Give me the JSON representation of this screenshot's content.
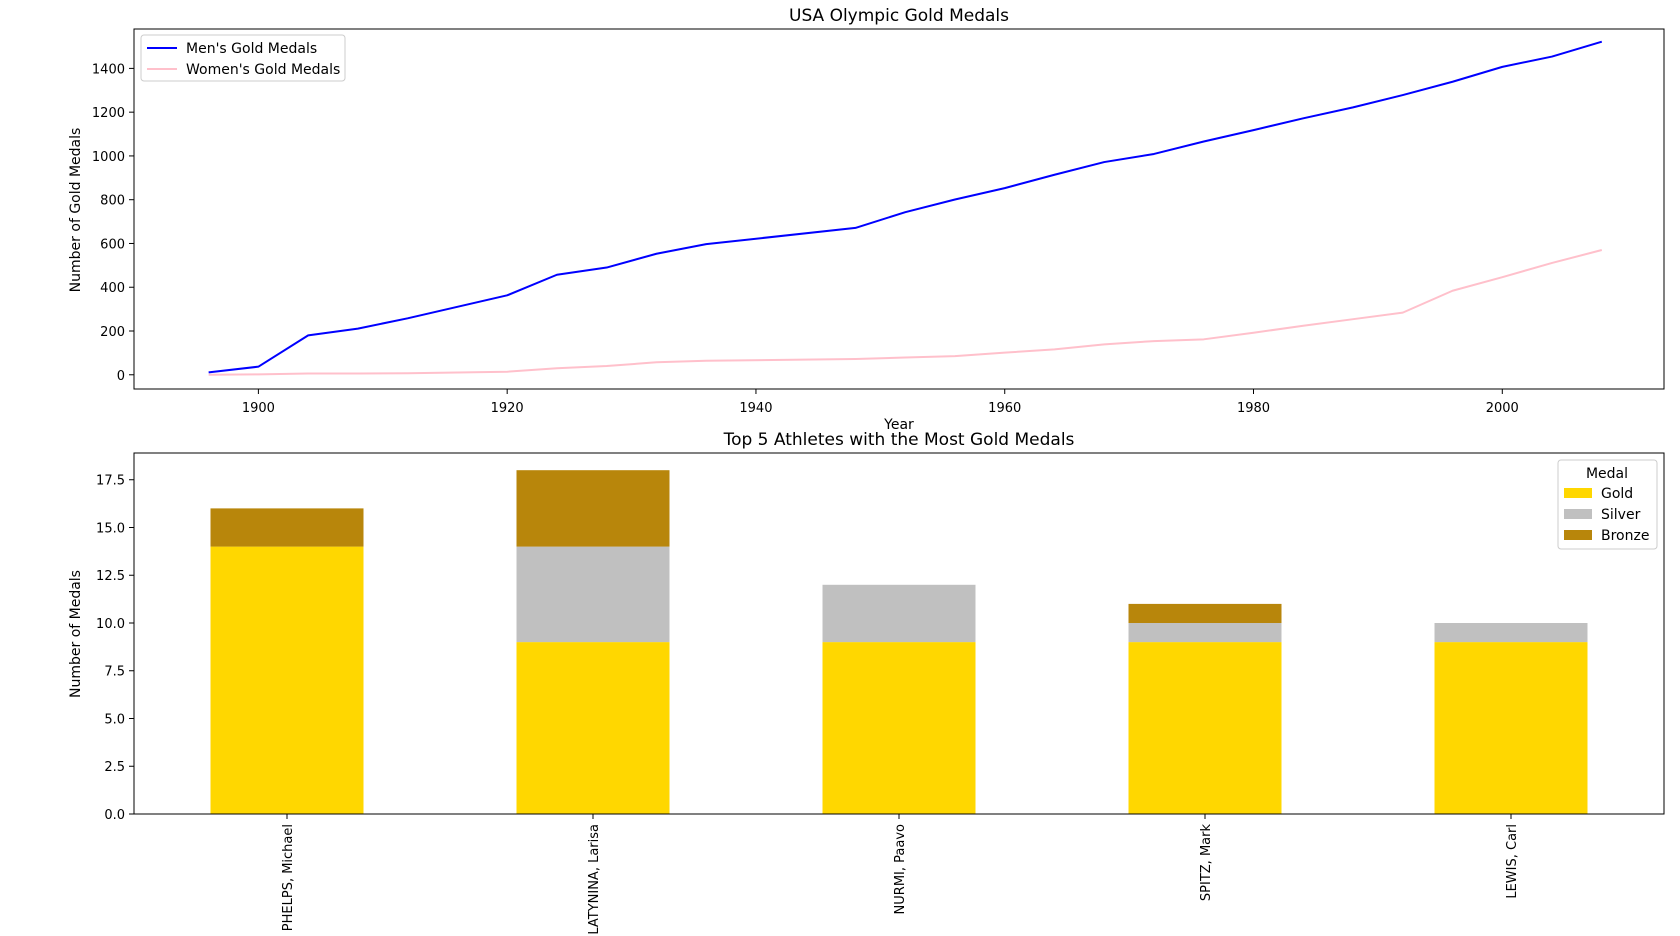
{
  "chart_data": [
    {
      "type": "line",
      "title": "USA Olympic Gold Medals",
      "xlabel": "Year",
      "ylabel": "Number of Gold Medals",
      "xlim": [
        1890,
        2013
      ],
      "ylim": [
        -65,
        1580
      ],
      "xticks": [
        1900,
        1920,
        1940,
        1960,
        1980,
        2000
      ],
      "yticks": [
        0,
        200,
        400,
        600,
        800,
        1000,
        1200,
        1400
      ],
      "legend_position": "upper-left",
      "x": [
        1896,
        1900,
        1904,
        1908,
        1912,
        1920,
        1924,
        1928,
        1932,
        1936,
        1948,
        1952,
        1956,
        1960,
        1964,
        1968,
        1972,
        1976,
        1980,
        1984,
        1988,
        1992,
        1996,
        2000,
        2004,
        2008
      ],
      "series": [
        {
          "name": "Men's Gold Medals",
          "color": "#0000ff",
          "values": [
            11,
            37,
            180,
            211,
            258,
            363,
            457,
            490,
            553,
            597,
            671,
            743,
            801,
            853,
            914,
            972,
            1009,
            1066,
            1118,
            1172,
            1222,
            1278,
            1339,
            1407,
            1454,
            1522
          ]
        },
        {
          "name": "Women's Gold Medals",
          "color": "#ffc0cb",
          "values": [
            0,
            2,
            6,
            6,
            7,
            14,
            30,
            40,
            57,
            64,
            72,
            79,
            85,
            101,
            116,
            139,
            154,
            162,
            192,
            224,
            254,
            284,
            384,
            446,
            511,
            570
          ]
        }
      ]
    },
    {
      "type": "bar",
      "stacked": true,
      "title": "Top 5 Athletes with the Most Gold Medals",
      "xlabel": "",
      "ylabel": "Number of Medals",
      "ylim": [
        0,
        18.9
      ],
      "yticks": [
        "0.0",
        "2.5",
        "5.0",
        "7.5",
        "10.0",
        "12.5",
        "15.0",
        "17.5"
      ],
      "legend_title": "Medal",
      "legend_position": "upper-right",
      "categories": [
        "PHELPS, Michael",
        "LATYNINA, Larisa",
        "NURMI, Paavo",
        "SPITZ, Mark",
        "LEWIS, Carl"
      ],
      "series": [
        {
          "name": "Gold",
          "color": "#ffd700",
          "values": [
            14,
            9,
            9,
            9,
            9
          ]
        },
        {
          "name": "Silver",
          "color": "#c0c0c0",
          "values": [
            0,
            5,
            3,
            1,
            1
          ]
        },
        {
          "name": "Bronze",
          "color": "#b8860b",
          "values": [
            2,
            4,
            0,
            1,
            0
          ]
        }
      ]
    }
  ]
}
